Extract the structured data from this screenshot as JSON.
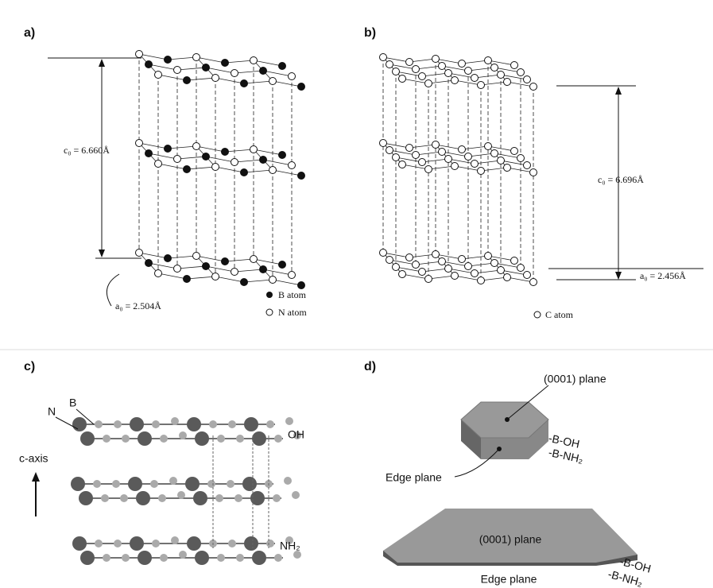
{
  "panel_a": {
    "label": "a)",
    "c0": "c₀ = 6.660Å",
    "a0": "a₀ = 2.504Å",
    "legend": [
      "B atom",
      "N atom"
    ]
  },
  "panel_b": {
    "label": "b)",
    "c0": "c₀ = 6.696Å",
    "a0": "a₀ = 2.456Å",
    "legend": [
      "C atom"
    ]
  },
  "panel_c": {
    "label": "c)",
    "atoms": [
      "N",
      "B"
    ],
    "groups": [
      "OH",
      "NH₂"
    ],
    "axis": "c-axis"
  },
  "panel_d": {
    "label": "d)",
    "small": {
      "plane": "(0001) plane",
      "edge": "Edge plane",
      "groups": [
        "-B-OH",
        "-B-NH₂"
      ]
    },
    "large": {
      "plane": "(0001) plane",
      "edge": "Edge plane",
      "groups": [
        "-B-OH",
        "-B-NH₂"
      ]
    }
  }
}
